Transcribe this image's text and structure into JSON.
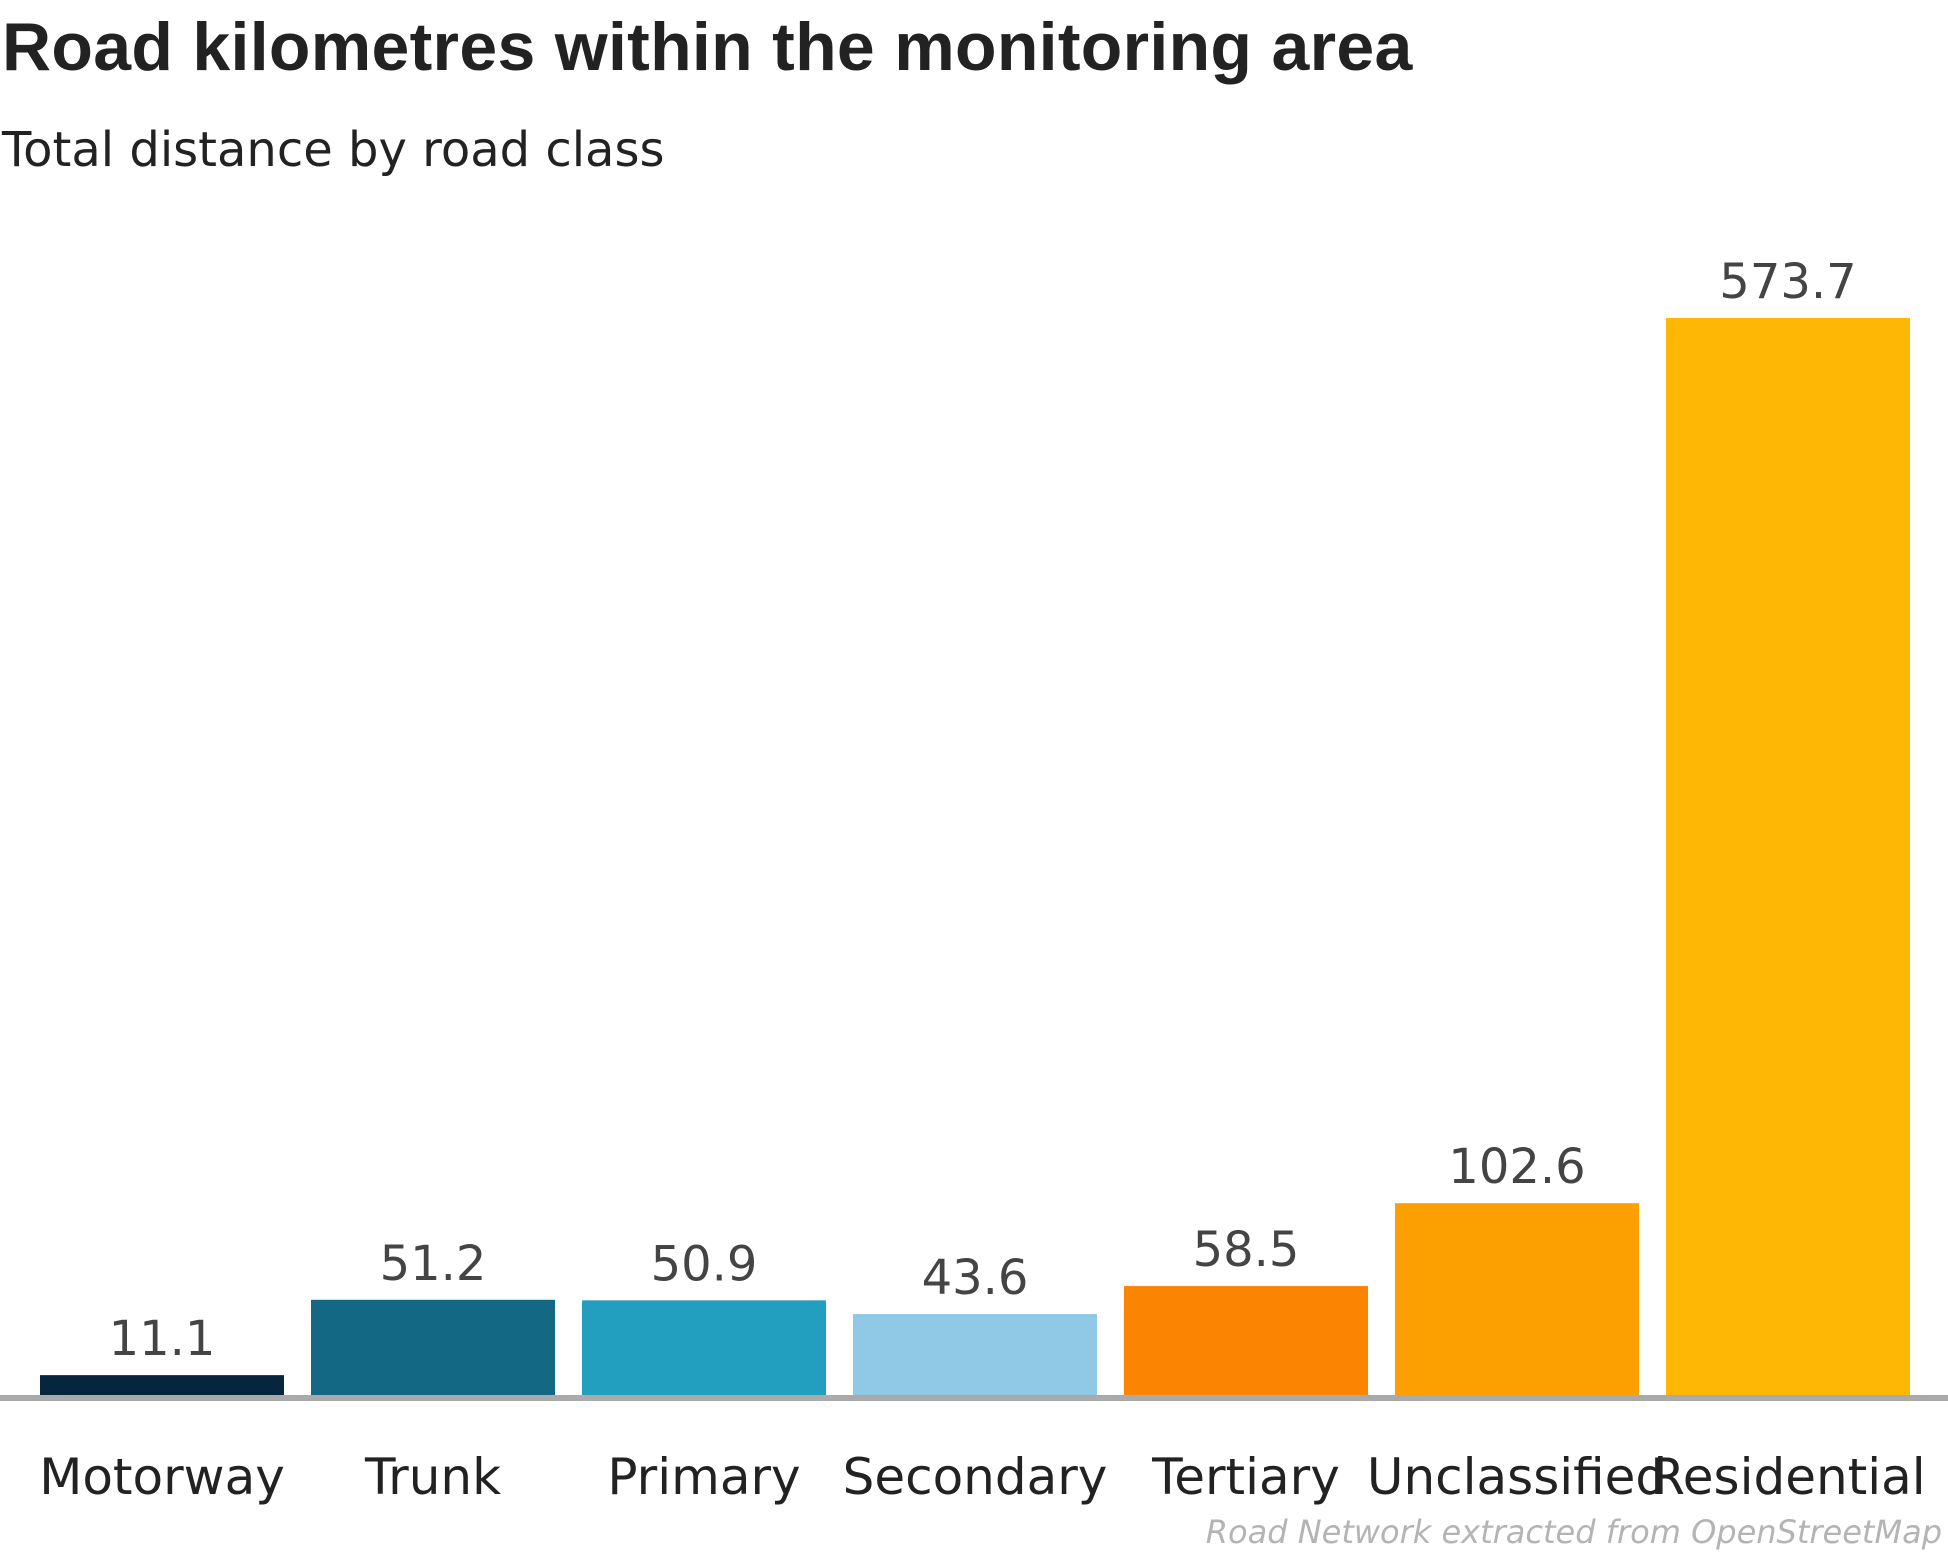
{
  "chart_data": {
    "type": "bar",
    "title": "Road kilometres within the monitoring area",
    "subtitle": "Total distance by road class",
    "xlabel": "",
    "ylabel": "",
    "categories": [
      "Motorway",
      "Trunk",
      "Primary",
      "Secondary",
      "Tertiary",
      "Unclassified",
      "Residential"
    ],
    "values": [
      11.1,
      51.2,
      50.9,
      43.6,
      58.5,
      102.6,
      573.7
    ],
    "value_labels": [
      "11.1",
      "51.2",
      "50.9",
      "43.6",
      "58.5",
      "102.6",
      "573.7"
    ],
    "colors": [
      "#06263d",
      "#136884",
      "#229ebe",
      "#90c9e5",
      "#fb8403",
      "#fca002",
      "#feb705"
    ],
    "ylim": [
      0,
      573.7
    ],
    "grid": false,
    "legend": "none",
    "baseline_color": "#aaaaaa",
    "source": "Road Network extracted from OpenStreetMap"
  }
}
